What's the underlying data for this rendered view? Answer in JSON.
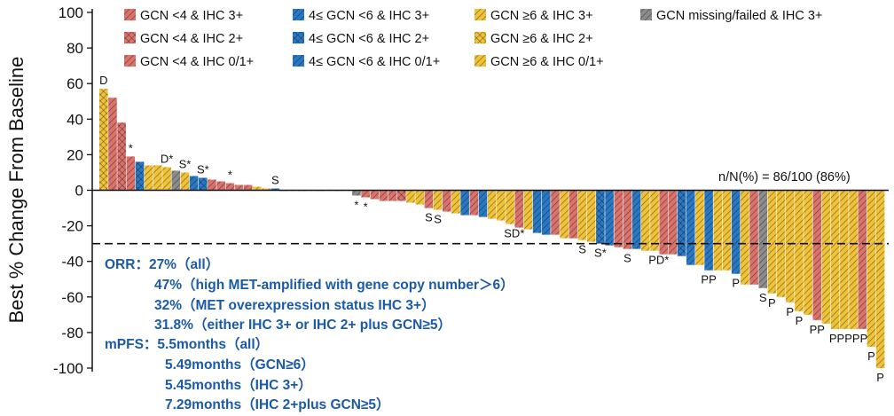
{
  "chart_data": {
    "type": "bar",
    "ylabel": "Best % Change From Baseline",
    "ylim": [
      -100,
      100
    ],
    "yticks": [
      100,
      80,
      60,
      40,
      20,
      0,
      -20,
      -40,
      -60,
      -80,
      -100
    ],
    "threshold": -30,
    "legend": [
      {
        "key": "r3",
        "name": "GCN <4 & IHC 3+"
      },
      {
        "key": "b3",
        "name": "4≤ GCN <6 & IHC 3+"
      },
      {
        "key": "y3",
        "name": "GCN ≥6 & IHC 3+"
      },
      {
        "key": "g3",
        "name": "GCN missing/failed & IHC 3+"
      },
      {
        "key": "r2",
        "name": "GCN <4 & IHC 2+"
      },
      {
        "key": "b2",
        "name": "4≤ GCN <6 & IHC 2+"
      },
      {
        "key": "y2",
        "name": "GCN ≥6 & IHC 2+"
      },
      {
        "key": "r1",
        "name": "GCN <4 & IHC 0/1+"
      },
      {
        "key": "b1",
        "name": "4≤ GCN <6 & IHC 0/1+"
      },
      {
        "key": "y1",
        "name": "GCN ≥6 & IHC 0/1+"
      }
    ],
    "colors": {
      "red": "#d9736c",
      "blue": "#2b78c2",
      "yellow": "#efc23a",
      "gray": "#8c8c8c"
    },
    "bars": [
      {
        "v": 57,
        "g": "y2",
        "l": "D"
      },
      {
        "v": 52,
        "g": "r3"
      },
      {
        "v": 38,
        "g": "r2"
      },
      {
        "v": 19,
        "g": "r1",
        "l": "*"
      },
      {
        "v": 16,
        "g": "b2"
      },
      {
        "v": 14,
        "g": "y1"
      },
      {
        "v": 14,
        "g": "y3"
      },
      {
        "v": 13,
        "g": "y1",
        "l": "D*"
      },
      {
        "v": 11,
        "g": "g3"
      },
      {
        "v": 10,
        "g": "y3",
        "l": "S*"
      },
      {
        "v": 8,
        "g": "b3"
      },
      {
        "v": 7,
        "g": "b2",
        "l": "S*"
      },
      {
        "v": 6,
        "g": "r1"
      },
      {
        "v": 5,
        "g": "r3"
      },
      {
        "v": 4,
        "g": "r1",
        "l": "*"
      },
      {
        "v": 3,
        "g": "r3"
      },
      {
        "v": 3,
        "g": "r1"
      },
      {
        "v": 2,
        "g": "y1"
      },
      {
        "v": 1,
        "g": "y3"
      },
      {
        "v": 1,
        "g": "b3",
        "l": "S"
      },
      {
        "v": 0,
        "g": "r1"
      },
      {
        "v": 0,
        "g": "y1"
      },
      {
        "v": 0,
        "g": "r1"
      },
      {
        "v": 0,
        "g": "y1"
      },
      {
        "v": 0,
        "g": "r1"
      },
      {
        "v": 0,
        "g": "y1"
      },
      {
        "v": 0,
        "g": "r1"
      },
      {
        "v": 0,
        "g": "y1"
      },
      {
        "v": -3,
        "g": "g3",
        "l": "*"
      },
      {
        "v": -4,
        "g": "r1",
        "l": "*"
      },
      {
        "v": -5,
        "g": "r1"
      },
      {
        "v": -6,
        "g": "r3"
      },
      {
        "v": -6,
        "g": "r3"
      },
      {
        "v": -6,
        "g": "r2"
      },
      {
        "v": -7,
        "g": "y3"
      },
      {
        "v": -8,
        "g": "y1"
      },
      {
        "v": -10,
        "g": "r1",
        "l": "S"
      },
      {
        "v": -11,
        "g": "y1",
        "l": "S"
      },
      {
        "v": -12,
        "g": "r3"
      },
      {
        "v": -13,
        "g": "y3"
      },
      {
        "v": -14,
        "g": "b1"
      },
      {
        "v": -14,
        "g": "r1"
      },
      {
        "v": -15,
        "g": "b3"
      },
      {
        "v": -16,
        "g": "y1"
      },
      {
        "v": -17,
        "g": "y1"
      },
      {
        "v": -19,
        "g": "y3",
        "l": "SD*"
      },
      {
        "v": -21,
        "g": "r3"
      },
      {
        "v": -22,
        "g": "y3"
      },
      {
        "v": -24,
        "g": "b3"
      },
      {
        "v": -25,
        "g": "b3"
      },
      {
        "v": -25,
        "g": "r3"
      },
      {
        "v": -27,
        "g": "y1"
      },
      {
        "v": -27,
        "g": "r3"
      },
      {
        "v": -28,
        "g": "y1",
        "l": "S"
      },
      {
        "v": -29,
        "g": "y3"
      },
      {
        "v": -30,
        "g": "b2",
        "l": "S*"
      },
      {
        "v": -31,
        "g": "b3"
      },
      {
        "v": -32,
        "g": "r1"
      },
      {
        "v": -33,
        "g": "r1",
        "l": "S"
      },
      {
        "v": -33,
        "g": "b3"
      },
      {
        "v": -34,
        "g": "y1"
      },
      {
        "v": -34,
        "g": "y1",
        "l": "PD*"
      },
      {
        "v": -36,
        "g": "r1"
      },
      {
        "v": -36,
        "g": "r1"
      },
      {
        "v": -37,
        "g": "b2"
      },
      {
        "v": -42,
        "g": "b3"
      },
      {
        "v": -42,
        "g": "y3"
      },
      {
        "v": -45,
        "g": "b3",
        "l": "PP"
      },
      {
        "v": -45,
        "g": "y1"
      },
      {
        "v": -45,
        "g": "y1"
      },
      {
        "v": -47,
        "g": "b3",
        "l": "P"
      },
      {
        "v": -53,
        "g": "y3"
      },
      {
        "v": -53,
        "g": "r1"
      },
      {
        "v": -55,
        "g": "g3",
        "l": "S"
      },
      {
        "v": -58,
        "g": "y3",
        "l": "P"
      },
      {
        "v": -60,
        "g": "y1"
      },
      {
        "v": -63,
        "g": "y3",
        "l": "P"
      },
      {
        "v": -68,
        "g": "y1",
        "l": "P"
      },
      {
        "v": -70,
        "g": "y1"
      },
      {
        "v": -73,
        "g": "r3",
        "l": "PP"
      },
      {
        "v": -75,
        "g": "y1"
      },
      {
        "v": -78,
        "g": "y1",
        "l": "PPPPP"
      },
      {
        "v": -78,
        "g": "y3"
      },
      {
        "v": -78,
        "g": "y1"
      },
      {
        "v": -78,
        "g": "r3"
      },
      {
        "v": -88,
        "g": "y1",
        "l": "P"
      },
      {
        "v": -100,
        "g": "y3",
        "l": "P"
      }
    ],
    "annotation": "n/N(%) = 86/100 (86%)"
  },
  "notes": [
    "ORR：27%（all）",
    "47%（high MET-amplified with gene copy number＞6）",
    "32%（MET overexpression status IHC 3+）",
    "31.8%（either IHC 3+ or IHC 2+ plus GCN≥5）",
    "mPFS：5.5months（all）",
    "5.49months（GCN≥6）",
    "5.45months（IHC 3+）",
    "7.29months（IHC 2+plus GCN≥5）"
  ]
}
